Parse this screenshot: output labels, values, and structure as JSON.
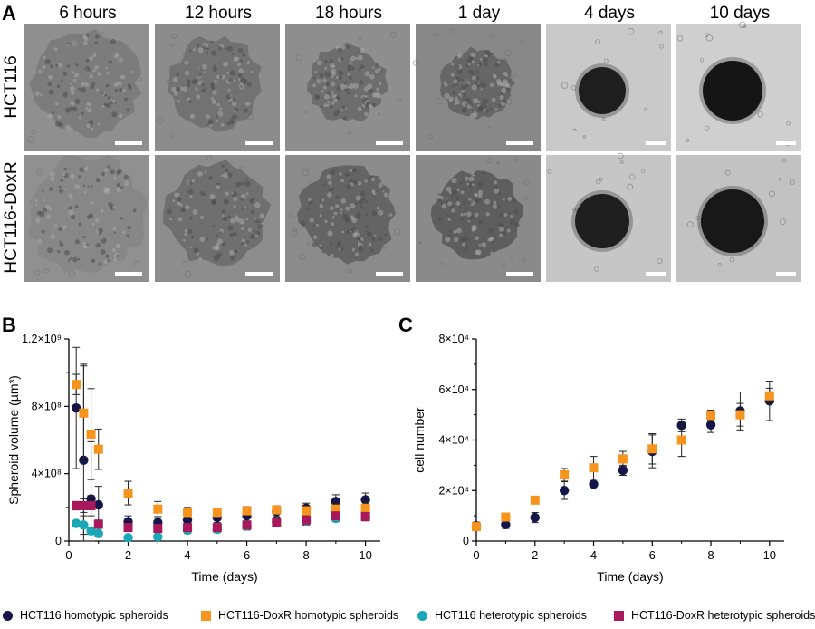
{
  "panels": {
    "a": "A",
    "b": "B",
    "c": "C"
  },
  "micrographs": {
    "columns": [
      "6 hours",
      "12 hours",
      "18 hours",
      "1 day",
      "4 days",
      "10 days"
    ],
    "rows": [
      "HCT116",
      "HCT116-DoxR"
    ]
  },
  "legend": [
    {
      "label": "HCT116 homotypic spheroids",
      "color": "#14164a",
      "shape": "circle"
    },
    {
      "label": "HCT116-DoxR homotypic spheroids",
      "color": "#f7941d",
      "shape": "square"
    },
    {
      "label": "HCT116 heterotypic spheroids",
      "color": "#1aa7b8",
      "shape": "circle"
    },
    {
      "label": "HCT116-DoxR heterotypic spheroids",
      "color": "#a8185a",
      "shape": "square"
    }
  ],
  "chart_data": [
    {
      "type": "scatter",
      "panel": "B",
      "xlabel": "Time (days)",
      "ylabel": "Spheroid volume (µm³)",
      "xlim": [
        0,
        10.5
      ],
      "ylim": [
        0,
        1200000000
      ],
      "xticks": [
        "0",
        "2",
        "4",
        "6",
        "8",
        "10"
      ],
      "yticks": [
        "0",
        "4×10⁸",
        "8×10⁸",
        "1.2×10⁹"
      ],
      "grid": false,
      "series": [
        {
          "name": "HCT116 homotypic spheroids",
          "x": [
            0.25,
            0.5,
            0.75,
            1,
            2,
            3,
            4,
            5,
            6,
            7,
            8,
            9,
            10
          ],
          "y": [
            790000000,
            480000000,
            250000000,
            215000000,
            115000000,
            110000000,
            125000000,
            140000000,
            150000000,
            175000000,
            195000000,
            235000000,
            245000000
          ],
          "err": [
            360000000,
            560000000,
            340000000,
            110000000,
            35000000,
            35000000,
            35000000,
            30000000,
            30000000,
            30000000,
            30000000,
            40000000,
            40000000
          ]
        },
        {
          "name": "HCT116-DoxR homotypic spheroids",
          "x": [
            0.25,
            0.5,
            0.75,
            1,
            2,
            3,
            4,
            5,
            6,
            7,
            8,
            9,
            10
          ],
          "y": [
            930000000,
            760000000,
            635000000,
            545000000,
            285000000,
            190000000,
            170000000,
            170000000,
            180000000,
            185000000,
            180000000,
            190000000,
            195000000
          ],
          "err": [
            60000000,
            290000000,
            270000000,
            120000000,
            70000000,
            45000000,
            30000000,
            25000000,
            25000000,
            25000000,
            30000000,
            35000000,
            40000000
          ]
        },
        {
          "name": "HCT116 heterotypic spheroids",
          "x": [
            0.25,
            0.5,
            0.75,
            1,
            2,
            3,
            4,
            5,
            6,
            7,
            8,
            9,
            10
          ],
          "y": [
            105000000,
            95000000,
            60000000,
            45000000,
            20000000,
            25000000,
            65000000,
            70000000,
            90000000,
            115000000,
            120000000,
            135000000,
            145000000
          ],
          "err": [
            15000000,
            55000000,
            20000000,
            15000000,
            10000000,
            10000000,
            20000000,
            20000000,
            25000000,
            25000000,
            25000000,
            20000000,
            25000000
          ]
        },
        {
          "name": "HCT116-DoxR heterotypic spheroids",
          "x": [
            0.25,
            0.5,
            0.75,
            1,
            2,
            3,
            4,
            5,
            6,
            7,
            8,
            9,
            10
          ],
          "y": [
            210000000,
            210000000,
            210000000,
            100000000,
            80000000,
            75000000,
            80000000,
            80000000,
            95000000,
            110000000,
            125000000,
            150000000,
            145000000
          ],
          "err": [
            25000000,
            40000000,
            60000000,
            25000000,
            15000000,
            10000000,
            15000000,
            15000000,
            20000000,
            20000000,
            20000000,
            20000000,
            20000000
          ]
        }
      ]
    },
    {
      "type": "scatter",
      "panel": "C",
      "xlabel": "Time (days)",
      "ylabel": "cell number",
      "xlim": [
        0,
        10.5
      ],
      "ylim": [
        0,
        80000
      ],
      "xticks": [
        "0",
        "2",
        "4",
        "6",
        "8",
        "10"
      ],
      "yticks": [
        "0",
        "2×10⁴",
        "4×10⁴",
        "6×10⁴",
        "8×10⁴"
      ],
      "grid": false,
      "series": [
        {
          "name": "HCT116 homotypic spheroids",
          "x": [
            0,
            1,
            2,
            3,
            4,
            5,
            6,
            7,
            8,
            9,
            10
          ],
          "y": [
            6000,
            6500,
            9300,
            20000,
            22500,
            28000,
            35500,
            45800,
            46000,
            51500,
            55500
          ],
          "err": [
            1500,
            1500,
            2000,
            3500,
            1000,
            2000,
            6500,
            2500,
            3000,
            7500,
            7800
          ]
        },
        {
          "name": "HCT116-DoxR homotypic spheroids",
          "x": [
            0,
            1,
            2,
            3,
            4,
            5,
            6,
            7,
            8,
            9,
            10
          ],
          "y": [
            5700,
            9500,
            16200,
            26200,
            29000,
            32500,
            36500,
            40000,
            49800,
            50000,
            57500
          ],
          "err": [
            500,
            1500,
            800,
            2500,
            4500,
            3000,
            6000,
            6500,
            2000,
            4500,
            3000
          ]
        }
      ]
    }
  ]
}
